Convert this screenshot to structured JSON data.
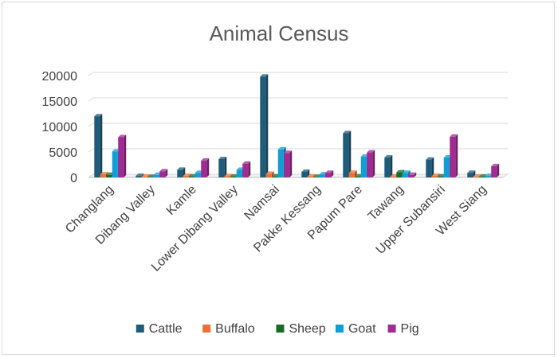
{
  "chart_data": {
    "type": "bar",
    "title": "Animal Census",
    "xlabel": "",
    "ylabel": "",
    "ylim": [
      0,
      20000
    ],
    "yticks": [
      0,
      5000,
      10000,
      15000,
      20000
    ],
    "grid": true,
    "legend_position": "bottom",
    "categories": [
      "Changlang",
      "Dibang Valley",
      "Kamle",
      "Lower Dibang Valley",
      "Namsai",
      "Pakke Kessang",
      "Papum Pare",
      "Tawang",
      "Upper Subansiri",
      "West Siang"
    ],
    "series": [
      {
        "name": "Cattle",
        "color": "#1f5c7a",
        "values": [
          12000,
          300,
          1500,
          3600,
          19800,
          1100,
          8700,
          3900,
          3500,
          900
        ]
      },
      {
        "name": "Buffalo",
        "color": "#e97132",
        "values": [
          600,
          150,
          300,
          250,
          700,
          200,
          900,
          150,
          300,
          150
        ]
      },
      {
        "name": "Sheep",
        "color": "#196b24",
        "values": [
          500,
          100,
          200,
          150,
          200,
          100,
          200,
          1000,
          200,
          150
        ]
      },
      {
        "name": "Goat",
        "color": "#0f9ed5",
        "values": [
          5100,
          500,
          900,
          1500,
          5500,
          600,
          4100,
          900,
          3900,
          300
        ]
      },
      {
        "name": "Pig",
        "color": "#a02b93",
        "values": [
          7900,
          1200,
          3300,
          2700,
          4800,
          900,
          4900,
          500,
          8000,
          2200
        ]
      }
    ]
  }
}
